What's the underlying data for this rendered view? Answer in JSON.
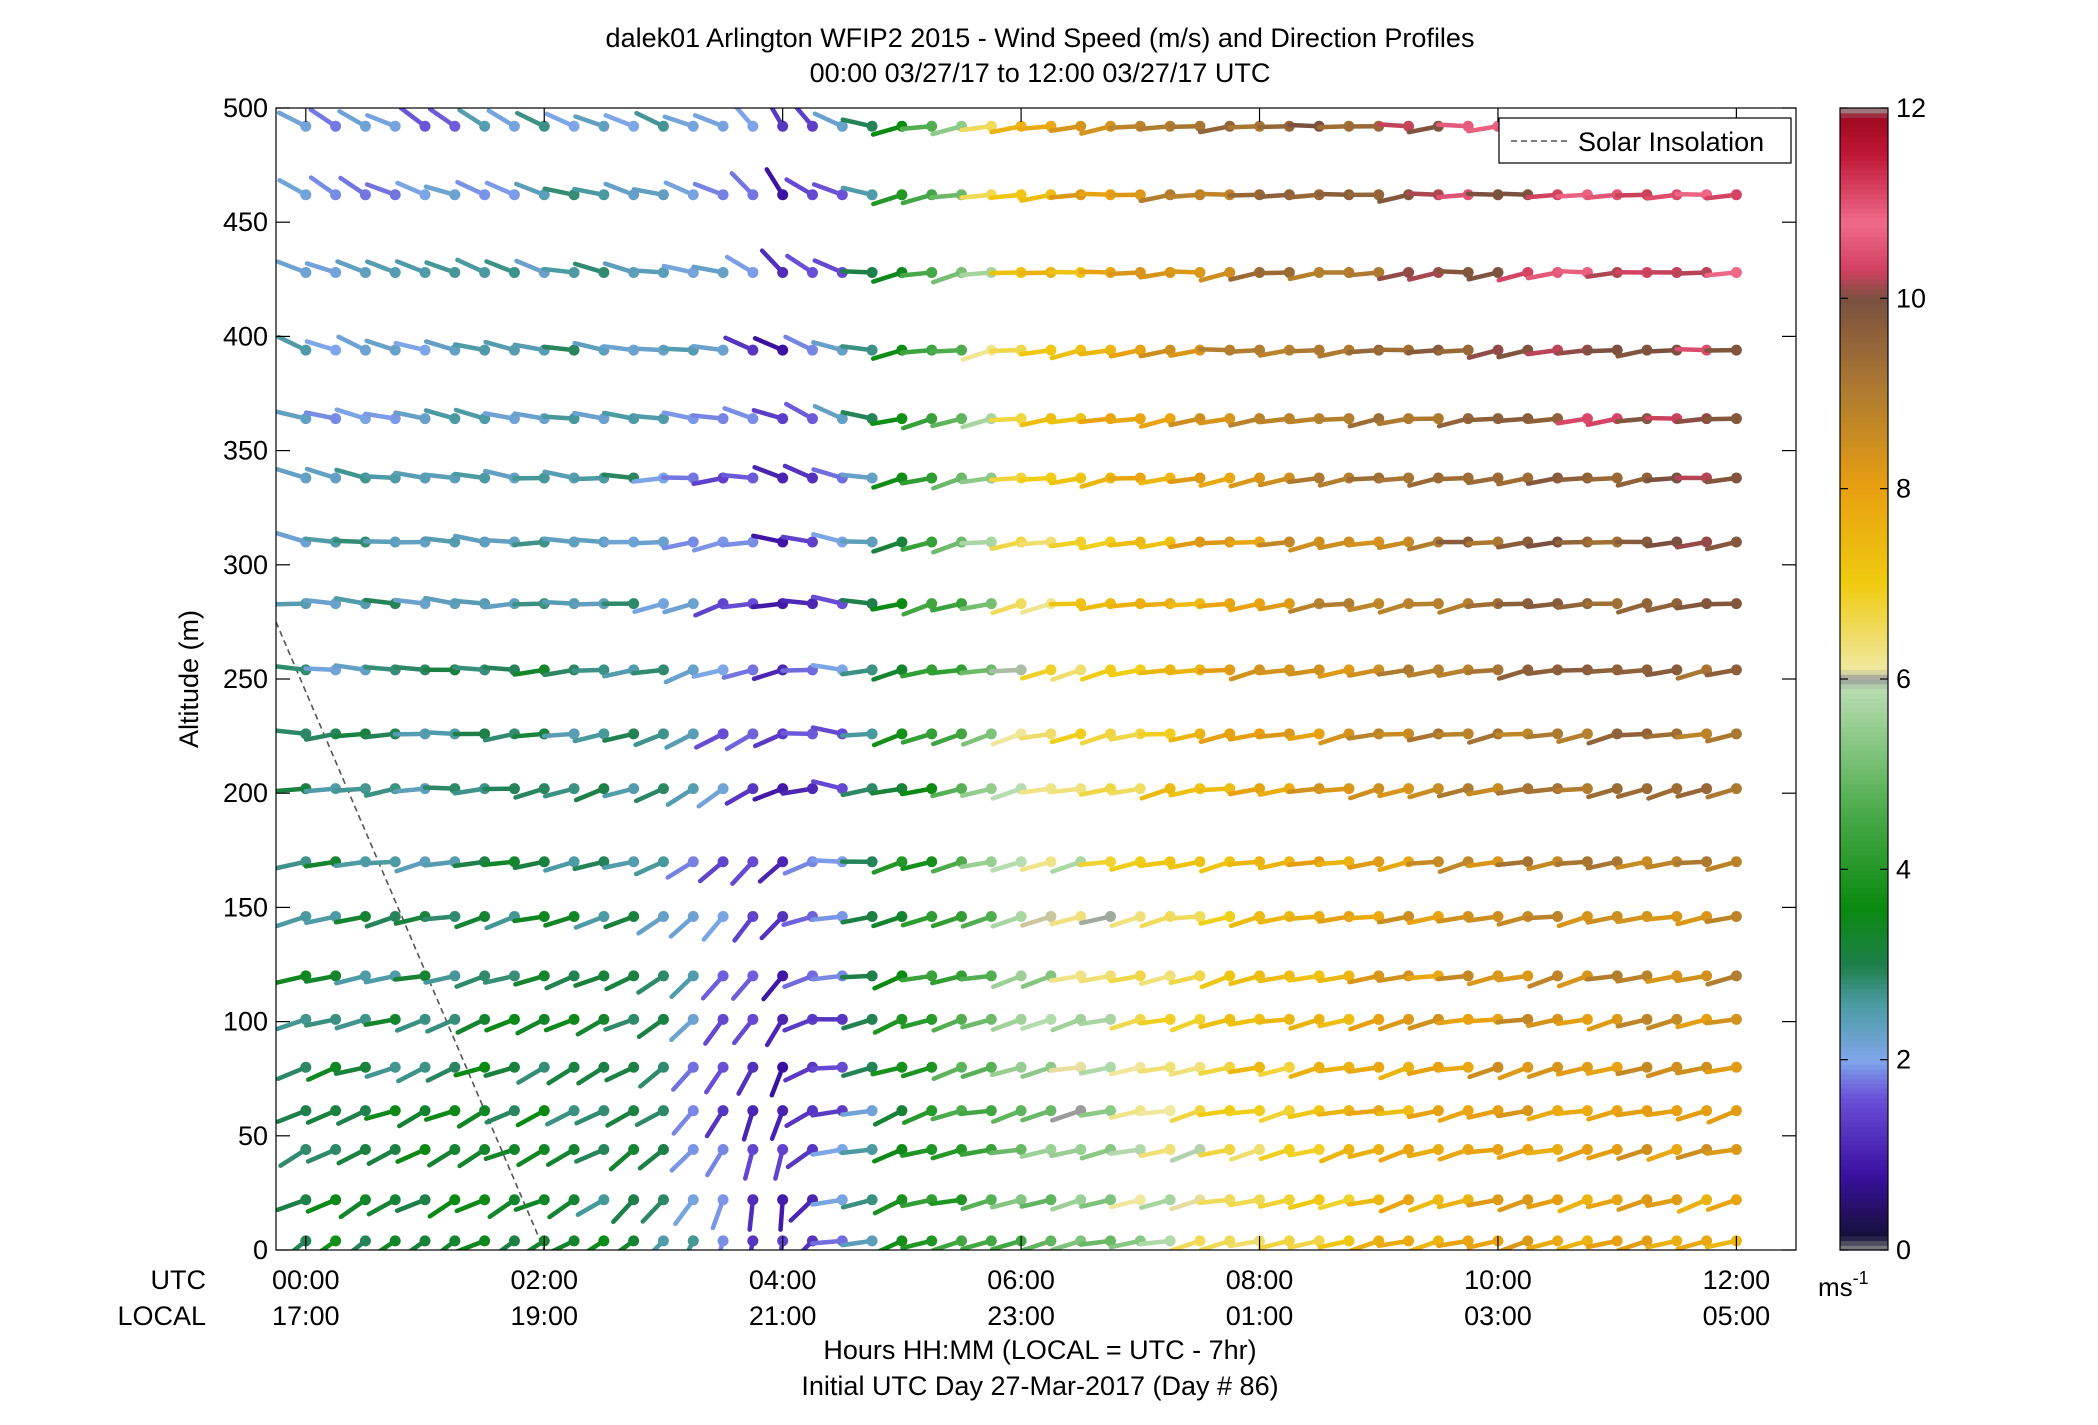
{
  "chart_data": {
    "type": "wind-barb-profile",
    "title": "dalek01 Arlington WFIP2 2015 - Wind Speed (m/s) and Direction Profiles",
    "subtitle": "00:00 03/27/17 to 12:00 03/27/17  UTC",
    "ylabel": "Altitude (m)",
    "xlabel": "Hours HH:MM  (LOCAL = UTC - 7hr)",
    "xlabel2": "Initial UTC Day 27-Mar-2017 (Day # 86)",
    "row_label_utc": "UTC",
    "row_label_local": "LOCAL",
    "ylim": [
      0,
      500
    ],
    "xlim_hours": [
      -0.25,
      12.5
    ],
    "yticks": [
      0,
      50,
      100,
      150,
      200,
      250,
      300,
      350,
      400,
      450,
      500
    ],
    "xticks": [
      {
        "hour": 0,
        "utc": "00:00",
        "local": "17:00"
      },
      {
        "hour": 2,
        "utc": "02:00",
        "local": "19:00"
      },
      {
        "hour": 4,
        "utc": "04:00",
        "local": "21:00"
      },
      {
        "hour": 6,
        "utc": "06:00",
        "local": "23:00"
      },
      {
        "hour": 8,
        "utc": "08:00",
        "local": "01:00"
      },
      {
        "hour": 10,
        "utc": "10:00",
        "local": "03:00"
      },
      {
        "hour": 12,
        "utc": "12:00",
        "local": "05:00"
      }
    ],
    "altitudes": [
      4,
      22,
      44,
      61,
      80,
      101,
      120,
      146,
      170,
      202,
      226,
      254,
      283,
      310,
      338,
      364,
      394,
      428,
      462,
      492
    ],
    "time_step_hours": 0.25,
    "legend": {
      "label": "Solar Insolation",
      "position": "top-right"
    },
    "solar_insolation_line": {
      "x_hours": [
        -0.25,
        2.0
      ],
      "y_m": [
        275,
        0
      ]
    },
    "colorbar": {
      "min": 0,
      "max": 12,
      "ticks": [
        0,
        2,
        4,
        6,
        8,
        10,
        12
      ],
      "unit": "ms",
      "unit_exp": "-1",
      "stops": [
        {
          "v": 0.0,
          "c": "#8a8a8a"
        },
        {
          "v": 0.15,
          "c": "#15103a"
        },
        {
          "v": 0.8,
          "c": "#3a10a0"
        },
        {
          "v": 1.6,
          "c": "#6a50d8"
        },
        {
          "v": 2.0,
          "c": "#7fa6ea"
        },
        {
          "v": 2.6,
          "c": "#4a9aa0"
        },
        {
          "v": 3.0,
          "c": "#1e7f4a"
        },
        {
          "v": 3.6,
          "c": "#0a8a10"
        },
        {
          "v": 4.6,
          "c": "#4aaa4a"
        },
        {
          "v": 5.9,
          "c": "#b8ddb0"
        },
        {
          "v": 6.0,
          "c": "#9a9a9a"
        },
        {
          "v": 6.1,
          "c": "#f0e8a0"
        },
        {
          "v": 7.0,
          "c": "#f0cc10"
        },
        {
          "v": 8.0,
          "c": "#e8a010"
        },
        {
          "v": 9.0,
          "c": "#b07c30"
        },
        {
          "v": 10.0,
          "c": "#7a5040"
        },
        {
          "v": 10.3,
          "c": "#d24060"
        },
        {
          "v": 10.8,
          "c": "#f06a8a"
        },
        {
          "v": 11.5,
          "c": "#c01838"
        },
        {
          "v": 11.9,
          "c": "#a00a20"
        },
        {
          "v": 12.0,
          "c": "#9a9a9a"
        }
      ]
    },
    "barb_note": "Each stick is drawn from the dot (observation point) toward the direction the wind comes from; colour = speed (m/s).",
    "regime_values": {
      "speed_hours": [
        0,
        1,
        2,
        3,
        3.5,
        4,
        4.5,
        5,
        5.5,
        6,
        7,
        8,
        9,
        10,
        11,
        12
      ],
      "speed_low": [
        3.4,
        3.3,
        3.4,
        2.8,
        1.6,
        1.0,
        1.6,
        3.5,
        4.3,
        4.8,
        5.6,
        6.6,
        7.2,
        7.8,
        7.8,
        7.8
      ],
      "speed_high": [
        1.8,
        1.9,
        2.4,
        2.3,
        1.9,
        1.2,
        2.0,
        3.6,
        5.0,
        7.5,
        8.6,
        9.3,
        9.8,
        10.5,
        10.8,
        10.9
      ],
      "dir_low": [
        240,
        240,
        240,
        225,
        195,
        180,
        260,
        250,
        255,
        255,
        255,
        255,
        255,
        255,
        255,
        255
      ],
      "dir_high": [
        300,
        300,
        290,
        290,
        300,
        330,
        300,
        260,
        260,
        262,
        265,
        265,
        265,
        265,
        265,
        265
      ]
    }
  }
}
